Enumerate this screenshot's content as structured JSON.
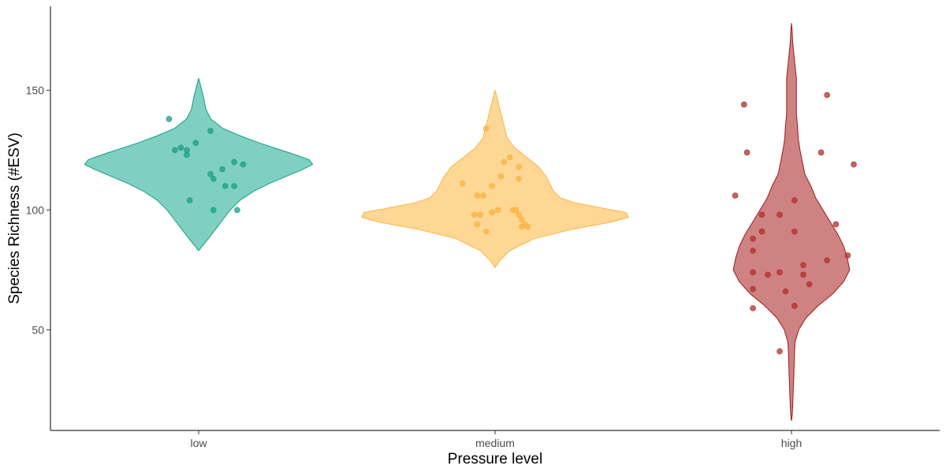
{
  "chart_data": {
    "type": "violin",
    "xlabel": "Pressure level",
    "ylabel": "Species Richness (#ESV)",
    "ylim": [
      8,
      185
    ],
    "yticks": [
      50,
      100,
      150
    ],
    "grid": false,
    "legend": "none",
    "categories": [
      {
        "name": "low",
        "fill": "#7fd0c1",
        "stroke": "#149e83",
        "point": "#1a9e84",
        "profile": [
          [
            83,
            0
          ],
          [
            85,
            3
          ],
          [
            88,
            8
          ],
          [
            92,
            14
          ],
          [
            96,
            20
          ],
          [
            100,
            26
          ],
          [
            104,
            34
          ],
          [
            108,
            46
          ],
          [
            111,
            58
          ],
          [
            114,
            72
          ],
          [
            117,
            86
          ],
          [
            119,
            94
          ],
          [
            121,
            91
          ],
          [
            123,
            80
          ],
          [
            125,
            68
          ],
          [
            128,
            50
          ],
          [
            131,
            34
          ],
          [
            134,
            20
          ],
          [
            138,
            10
          ],
          [
            142,
            6
          ],
          [
            147,
            4
          ],
          [
            151,
            2
          ],
          [
            155,
            0
          ]
        ],
        "points": [
          [
            -0.1,
            138
          ],
          [
            -0.06,
            126
          ],
          [
            -0.04,
            125
          ],
          [
            0.04,
            133
          ],
          [
            0.04,
            115
          ],
          [
            0.05,
            113
          ],
          [
            0.05,
            100
          ],
          [
            0.08,
            117
          ],
          [
            0.09,
            110
          ],
          [
            0.12,
            120
          ],
          [
            0.12,
            110
          ],
          [
            0.15,
            119
          ],
          [
            -0.01,
            128
          ],
          [
            -0.04,
            123
          ],
          [
            -0.08,
            125
          ],
          [
            -0.03,
            104
          ],
          [
            0.13,
            100
          ]
        ]
      },
      {
        "name": "medium",
        "fill": "#fed794",
        "stroke": "#f9b342",
        "point": "#f9b342",
        "profile": [
          [
            76,
            0
          ],
          [
            79,
            4
          ],
          [
            83,
            12
          ],
          [
            88,
            32
          ],
          [
            92,
            64
          ],
          [
            95,
            96
          ],
          [
            97,
            110
          ],
          [
            99,
            108
          ],
          [
            101,
            86
          ],
          [
            103,
            66
          ],
          [
            105,
            54
          ],
          [
            108,
            48
          ],
          [
            111,
            45
          ],
          [
            114,
            42
          ],
          [
            118,
            36
          ],
          [
            122,
            26
          ],
          [
            126,
            16
          ],
          [
            130,
            10
          ],
          [
            134,
            8
          ],
          [
            138,
            6
          ],
          [
            142,
            4
          ],
          [
            146,
            2
          ],
          [
            150,
            0
          ]
        ],
        "points": [
          [
            -0.11,
            111
          ],
          [
            -0.07,
            98
          ],
          [
            -0.06,
            106
          ],
          [
            -0.06,
            94
          ],
          [
            -0.04,
            106
          ],
          [
            -0.05,
            98
          ],
          [
            -0.03,
            91
          ],
          [
            -0.01,
            99
          ],
          [
            -0.01,
            110
          ],
          [
            0.02,
            114
          ],
          [
            0.03,
            120
          ],
          [
            0.05,
            122
          ],
          [
            0.06,
            100
          ],
          [
            0.07,
            100
          ],
          [
            0.08,
            98
          ],
          [
            0.08,
            118
          ],
          [
            0.08,
            113
          ],
          [
            0.09,
            93
          ],
          [
            0.09,
            96
          ],
          [
            0.1,
            94
          ],
          [
            0.11,
            93
          ],
          [
            -0.03,
            134
          ],
          [
            0.01,
            100
          ]
        ]
      },
      {
        "name": "high",
        "fill": "#cf8282",
        "stroke": "#9e1b1b",
        "point": "#b22d2d",
        "profile": [
          [
            12,
            0
          ],
          [
            14,
            0.5
          ],
          [
            18,
            1
          ],
          [
            25,
            1.5
          ],
          [
            32,
            2
          ],
          [
            40,
            2.5
          ],
          [
            45,
            3
          ],
          [
            50,
            6
          ],
          [
            55,
            12
          ],
          [
            60,
            22
          ],
          [
            65,
            34
          ],
          [
            70,
            43
          ],
          [
            75,
            48
          ],
          [
            80,
            46
          ],
          [
            85,
            43
          ],
          [
            90,
            38
          ],
          [
            95,
            32
          ],
          [
            100,
            26
          ],
          [
            105,
            20
          ],
          [
            110,
            16
          ],
          [
            115,
            11
          ],
          [
            120,
            9
          ],
          [
            125,
            7
          ],
          [
            130,
            5.5
          ],
          [
            135,
            5
          ],
          [
            140,
            4
          ],
          [
            145,
            4
          ],
          [
            150,
            4
          ],
          [
            155,
            4
          ],
          [
            160,
            3
          ],
          [
            165,
            2
          ],
          [
            170,
            1
          ],
          [
            175,
            0.5
          ],
          [
            178,
            0
          ]
        ],
        "points": [
          [
            -0.19,
            106
          ],
          [
            -0.16,
            144
          ],
          [
            -0.15,
            124
          ],
          [
            -0.13,
            59
          ],
          [
            -0.13,
            67
          ],
          [
            -0.13,
            74
          ],
          [
            -0.13,
            83
          ],
          [
            -0.13,
            88
          ],
          [
            -0.1,
            91
          ],
          [
            -0.1,
            98
          ],
          [
            -0.08,
            73
          ],
          [
            -0.04,
            74
          ],
          [
            -0.04,
            98
          ],
          [
            -0.04,
            41
          ],
          [
            -0.02,
            66
          ],
          [
            0.01,
            104
          ],
          [
            0.01,
            91
          ],
          [
            0.01,
            60
          ],
          [
            0.04,
            73
          ],
          [
            0.04,
            77
          ],
          [
            0.06,
            69
          ],
          [
            0.1,
            124
          ],
          [
            0.12,
            79
          ],
          [
            0.12,
            148
          ],
          [
            0.15,
            94
          ],
          [
            0.19,
            81
          ],
          [
            0.21,
            119
          ]
        ]
      }
    ]
  }
}
